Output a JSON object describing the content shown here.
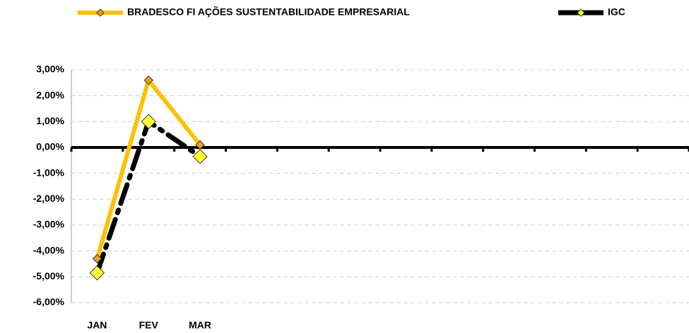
{
  "chart_data": {
    "type": "line",
    "categories": [
      "JAN",
      "FEV",
      "MAR",
      null,
      null,
      null,
      null,
      null,
      null,
      null,
      null,
      null
    ],
    "series": [
      {
        "name": "BRADESCO FI AÇÕES SUSTENTABILIDADE EMPRESARIAL",
        "color": "#FFC000",
        "marker_color": "#E8A020",
        "values": [
          -4.3,
          2.6,
          0.1,
          null,
          null,
          null,
          null,
          null,
          null,
          null,
          null,
          null
        ]
      },
      {
        "name": "IGC",
        "color": "#000000",
        "marker_color": "#FFFF33",
        "values": [
          -4.85,
          1.0,
          -0.35,
          null,
          null,
          null,
          null,
          null,
          null,
          null,
          null,
          null
        ]
      }
    ],
    "ylim": [
      -6,
      3
    ],
    "yticks": [
      {
        "value": 3,
        "label": "3,00%"
      },
      {
        "value": 2,
        "label": "2,00%"
      },
      {
        "value": 1,
        "label": "1,00%"
      },
      {
        "value": 0,
        "label": "0,00%"
      },
      {
        "value": -1,
        "label": "-1,00%"
      },
      {
        "value": -2,
        "label": "-2,00%"
      },
      {
        "value": -3,
        "label": "-3,00%"
      },
      {
        "value": -4,
        "label": "-4,00%"
      },
      {
        "value": -5,
        "label": "-5,00%"
      },
      {
        "value": -6,
        "label": "-6,00%"
      }
    ],
    "grid": true,
    "legend": "top"
  }
}
